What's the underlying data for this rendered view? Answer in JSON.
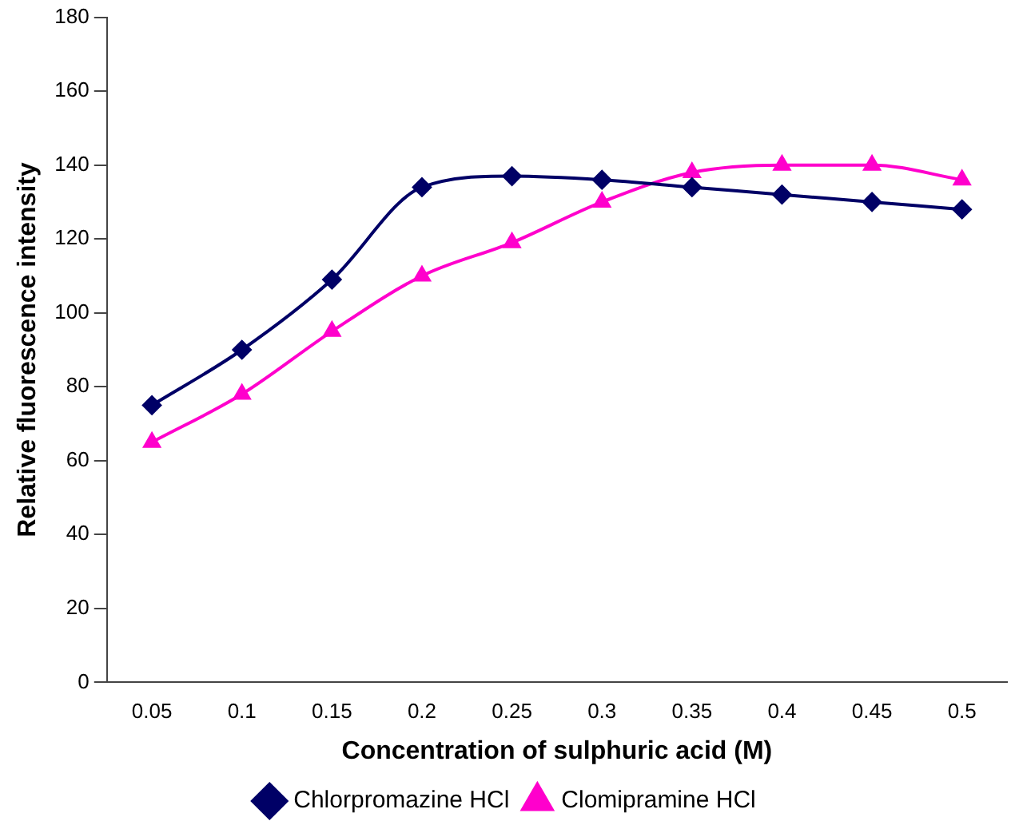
{
  "chart_data": {
    "type": "line",
    "xlabel": "Concentration of sulphuric acid (M)",
    "ylabel": "Relative fluorescence intensity",
    "categories": [
      "0.05",
      "0.1",
      "0.15",
      "0.2",
      "0.25",
      "0.3",
      "0.35",
      "0.4",
      "0.45",
      "0.5"
    ],
    "series": [
      {
        "name": "Chlorpromazine HCl",
        "color": "#000066",
        "marker": "diamond",
        "values": [
          75,
          90,
          109,
          134,
          137,
          136,
          134,
          132,
          130,
          128
        ]
      },
      {
        "name": "Clomipramine HCl",
        "color": "#ff00cc",
        "marker": "triangle",
        "values": [
          65,
          78,
          95,
          110,
          119,
          130,
          138,
          140,
          140,
          136
        ]
      }
    ],
    "ylim": [
      0,
      180
    ],
    "yticks": [
      0,
      20,
      40,
      60,
      80,
      100,
      120,
      140,
      160,
      180
    ],
    "grid": false,
    "legend": "bottom",
    "line_style": "solid"
  }
}
